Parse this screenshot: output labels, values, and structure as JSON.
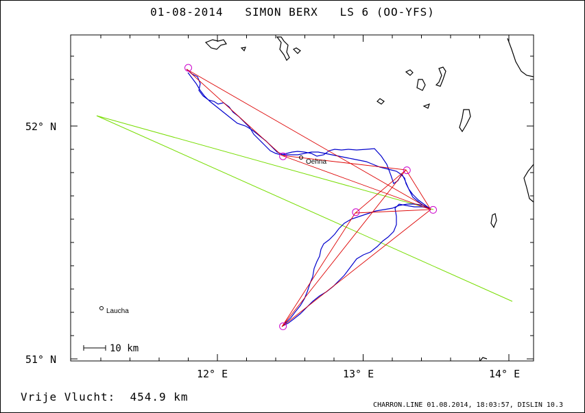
{
  "title": {
    "date": "01-08-2014",
    "pilot": "SIMON BERX",
    "glider": "LS 6 (OO-YFS)"
  },
  "axes": {
    "lat_labels": [
      "52° N",
      "51° N"
    ],
    "lon_labels": [
      "12° E",
      "13° E",
      "14° E"
    ]
  },
  "places": [
    {
      "name": "Oehna",
      "lon": 12.57,
      "lat": 51.86
    },
    {
      "name": "Laucha",
      "lon": 11.15,
      "lat": 51.22
    }
  ],
  "scale_bar": {
    "label": "10 km"
  },
  "footer": {
    "flight_label": "Vrije Vlucht:",
    "distance": "454.9 km",
    "credit": "CHARRON.LINE 01.08.2014, 18:03:57, DISLIN 10.3"
  },
  "colors": {
    "track": "#0000cc",
    "task": "#dd0000",
    "turnpoint": "#cc00cc",
    "green_line": "#77dd00",
    "coast": "#000000"
  },
  "turnpoints": [
    {
      "lon": 11.8,
      "lat": 52.25
    },
    {
      "lon": 12.45,
      "lat": 51.87
    },
    {
      "lon": 13.3,
      "lat": 51.81
    },
    {
      "lon": 13.48,
      "lat": 51.64
    },
    {
      "lon": 12.95,
      "lat": 51.63
    },
    {
      "lon": 12.45,
      "lat": 51.14
    }
  ]
}
